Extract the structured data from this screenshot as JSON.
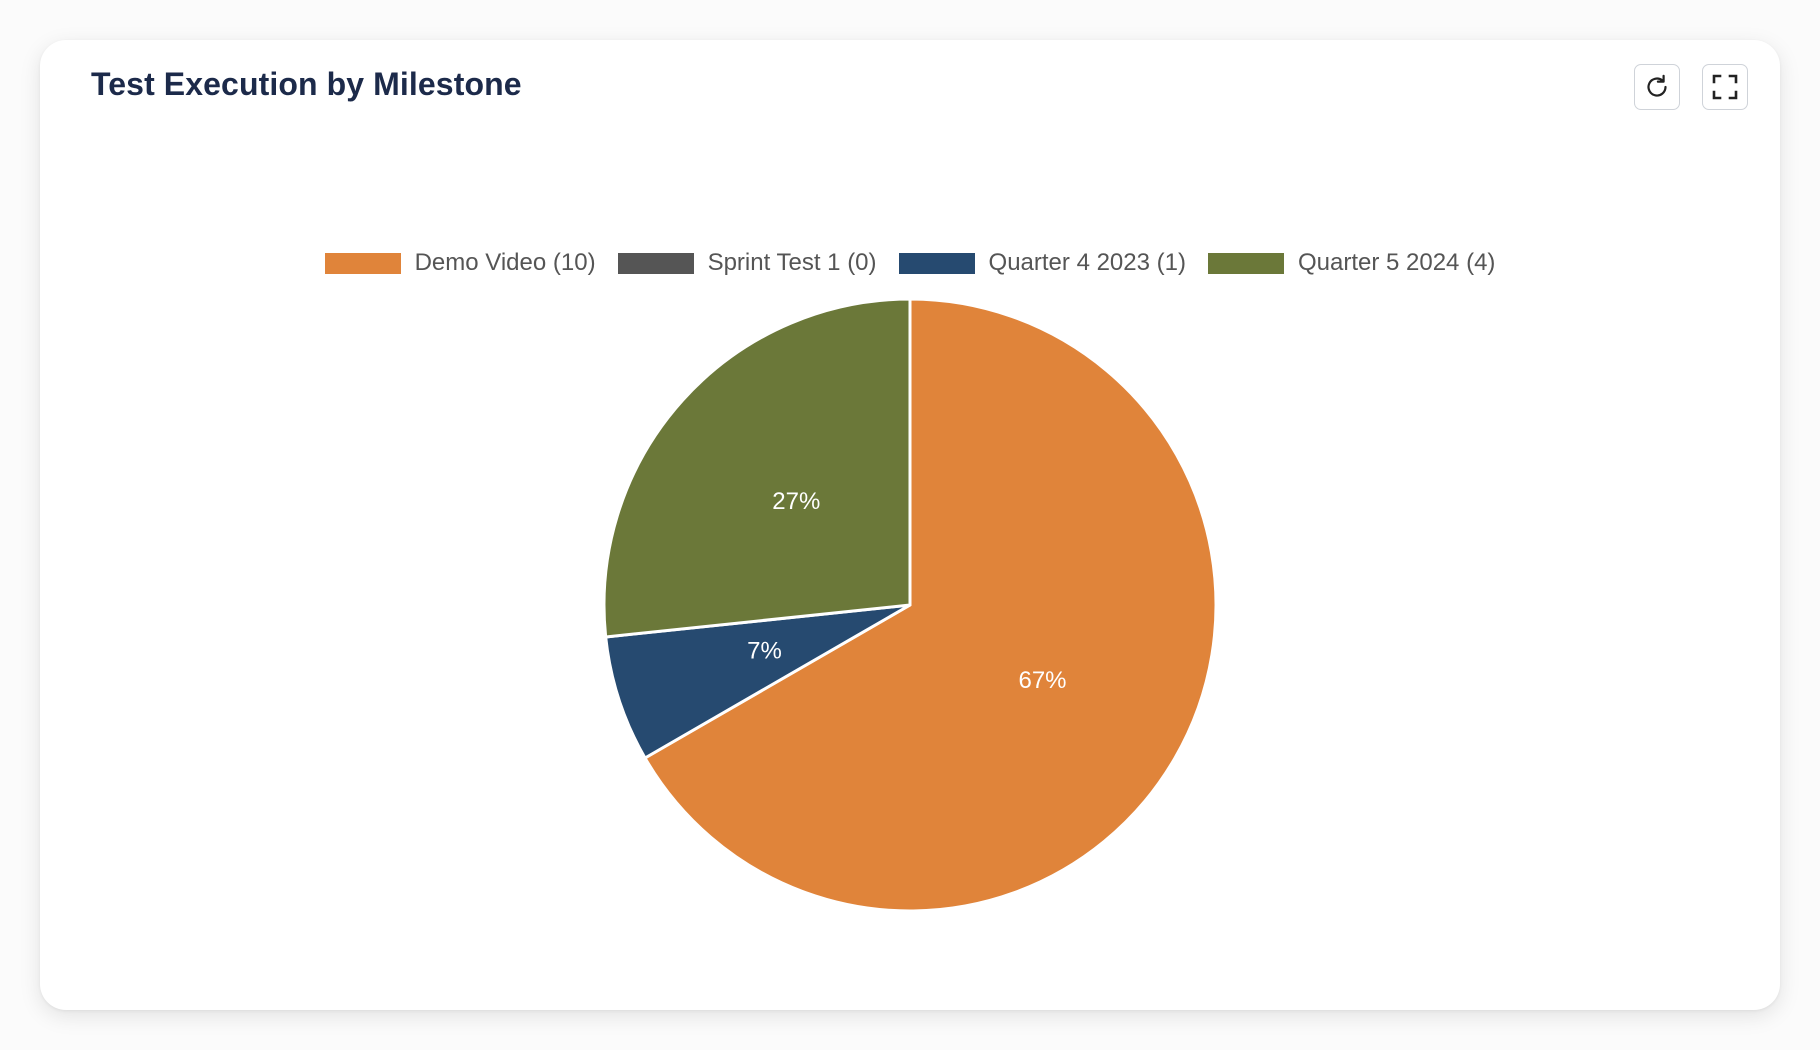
{
  "card": {
    "title": "Test Execution by Milestone"
  },
  "toolbar": {
    "refresh_icon": "refresh-icon",
    "fullscreen_icon": "expand-icon"
  },
  "chart_data": {
    "type": "pie",
    "categories": [
      "Demo Video",
      "Sprint Test 1",
      "Quarter 4 2023",
      "Quarter 5 2024"
    ],
    "values": [
      10,
      0,
      1,
      4
    ],
    "percent_labels": [
      "67%",
      "",
      "7%",
      "27%"
    ],
    "legend_labels": [
      "Demo Video (10)",
      "Sprint Test 1 (0)",
      "Quarter 4 2023 (1)",
      "Quarter 5 2024 (4)"
    ],
    "colors": [
      "#e0843a",
      "#555555",
      "#264a70",
      "#6b7839"
    ],
    "legend_position": "top-center",
    "start_angle": "12 o'clock, clockwise"
  }
}
